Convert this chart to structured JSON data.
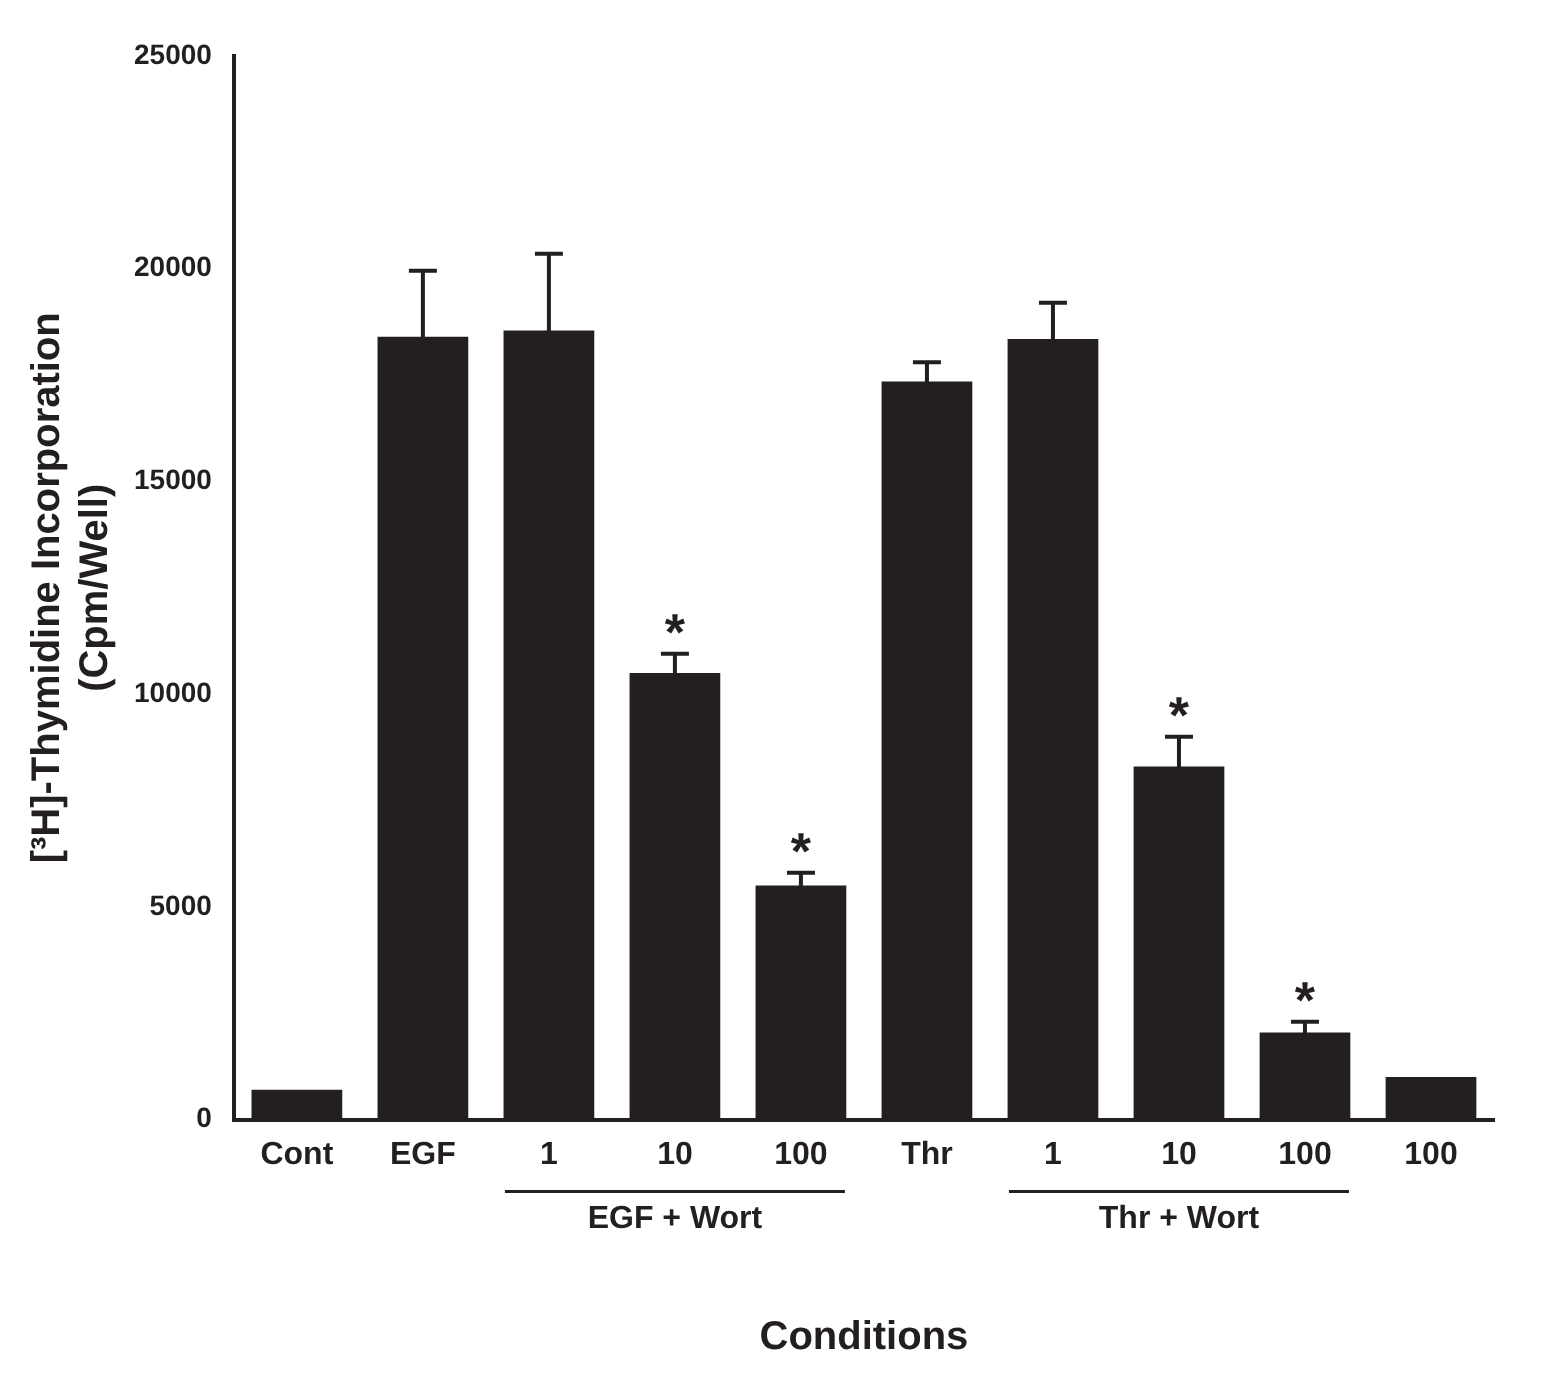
{
  "chart_data": {
    "type": "bar",
    "xlabel": "Conditions",
    "ylabel": "[³H]-Thymidine Incorporation\n(Cpm/Well)",
    "categories": [
      "Cont",
      "EGF",
      "1",
      "10",
      "100",
      "Thr",
      "1",
      "10",
      "100",
      "100"
    ],
    "values": [
      700,
      18400,
      18550,
      10500,
      5500,
      17350,
      18350,
      8300,
      2050,
      1000
    ],
    "errors": [
      null,
      1550,
      1800,
      450,
      300,
      450,
      850,
      700,
      250,
      null
    ],
    "value_labels": [
      null,
      null,
      null,
      "*",
      "*",
      null,
      null,
      "*",
      "*",
      null
    ],
    "color": "#231f20",
    "ylim": [
      0,
      25000
    ],
    "yticks": [
      0,
      5000,
      10000,
      15000,
      20000,
      25000
    ],
    "annotations": [
      "EGF + Wort",
      "Thr + Wort"
    ],
    "grid": false,
    "legend": false
  }
}
